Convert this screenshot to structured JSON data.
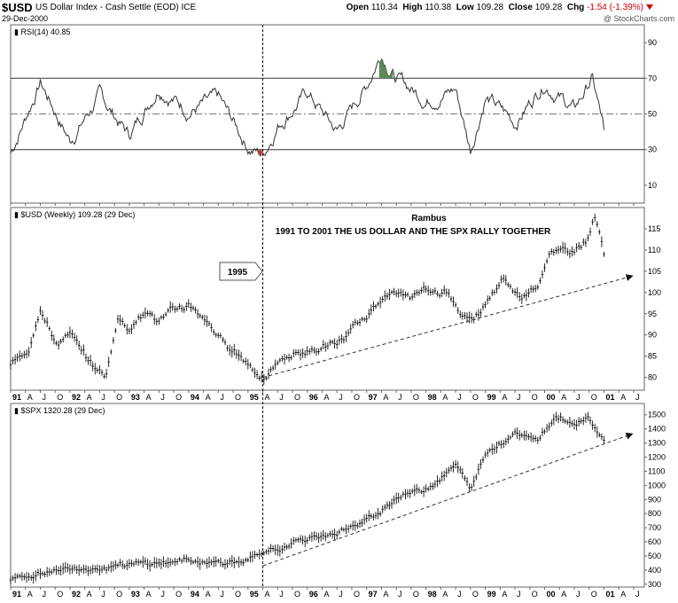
{
  "header": {
    "symbol": "$USD",
    "description": "US Dollar Index - Cash Settle (EOD)  ICE",
    "date": "29-Dec-2000",
    "open_label": "Open",
    "open": "110.34",
    "high_label": "High",
    "high": "110.38",
    "low_label": "Low",
    "low": "109.28",
    "close_label": "Close",
    "close": "109.28",
    "chg_label": "Chg",
    "chg": "-1.54 (-1.39%)",
    "brand": "@ StockCharts.com",
    "colors": {
      "negative": "#cc0000"
    }
  },
  "chart_data": [
    {
      "type": "line",
      "title": "RSI(14) 40.85",
      "yticks": [
        90,
        70,
        50,
        30,
        10
      ],
      "ylim": [
        0,
        100
      ],
      "reference_lines": [
        70,
        50,
        30
      ],
      "x": [
        1991.0,
        1991.5,
        1992.0,
        1992.5,
        1993.0,
        1993.5,
        1994.0,
        1994.5,
        1995.0,
        1995.25,
        1995.5,
        1996.0,
        1996.5,
        1997.0,
        1997.25,
        1997.5,
        1998.0,
        1998.5,
        1998.75,
        1999.0,
        1999.5,
        2000.0,
        2000.5,
        2000.8,
        2001.0
      ],
      "values": [
        28,
        68,
        35,
        60,
        38,
        66,
        52,
        58,
        32,
        27,
        44,
        62,
        40,
        66,
        85,
        70,
        58,
        64,
        30,
        60,
        45,
        68,
        52,
        70,
        41
      ],
      "overbought_fill": {
        "from": 1997.2,
        "to": 1997.45,
        "color": "#5a8a5a"
      },
      "oversold_mark_color": "#cc3333"
    },
    {
      "type": "line",
      "title": "$USD (Weekly) 109.28 (29 Dec)",
      "annotation_title": "Rambus",
      "annotation": "1991 TO 2001 THE US DOLLAR AND THE SPX RALLY TOGETHER",
      "callout": "1995",
      "yticks": [
        115,
        110,
        105,
        100,
        95,
        90,
        85,
        80
      ],
      "ylim": [
        77,
        120
      ],
      "x": [
        1991.0,
        1991.3,
        1991.5,
        1991.75,
        1992.0,
        1992.3,
        1992.6,
        1992.8,
        1993.0,
        1993.3,
        1993.5,
        1993.75,
        1994.0,
        1994.3,
        1994.6,
        1994.9,
        1995.1,
        1995.3,
        1995.5,
        1995.8,
        1996.0,
        1996.5,
        1997.0,
        1997.3,
        1997.6,
        1998.0,
        1998.4,
        1998.6,
        1998.8,
        1999.0,
        1999.3,
        1999.6,
        1999.9,
        2000.1,
        2000.4,
        2000.7,
        2000.85,
        2001.0
      ],
      "values": [
        83,
        87,
        97,
        88,
        90,
        84,
        80,
        94,
        92,
        96,
        93,
        96,
        97,
        93,
        88,
        85,
        82,
        80,
        83,
        86,
        86,
        88,
        94,
        100,
        99,
        100,
        100,
        95,
        93,
        97,
        103,
        99,
        103,
        109,
        110,
        112,
        118,
        109
      ],
      "trendline": {
        "x": [
          1995.25,
          2001.5
        ],
        "y": [
          80,
          103.5
        ]
      }
    },
    {
      "type": "line",
      "title": "$SPX 1320.28 (29 Dec)",
      "yticks": [
        1500,
        1400,
        1300,
        1200,
        1100,
        1000,
        900,
        800,
        700,
        600,
        500,
        400,
        300
      ],
      "ylim": [
        280,
        1580
      ],
      "x": [
        1991.0,
        1991.5,
        1992.0,
        1992.5,
        1993.0,
        1993.5,
        1994.0,
        1994.5,
        1995.0,
        1995.5,
        1996.0,
        1996.5,
        1997.0,
        1997.5,
        1998.0,
        1998.5,
        1998.75,
        1999.0,
        1999.5,
        1999.9,
        2000.2,
        2000.5,
        2000.75,
        2001.0
      ],
      "values": [
        330,
        380,
        415,
        420,
        435,
        450,
        470,
        455,
        465,
        550,
        620,
        670,
        740,
        920,
        980,
        1150,
        960,
        1230,
        1380,
        1330,
        1500,
        1440,
        1470,
        1320
      ],
      "trendline": {
        "x": [
          1995.25,
          2001.5
        ],
        "y": [
          430,
          1350
        ]
      }
    }
  ],
  "time_axis": {
    "labels": [
      "91",
      "A",
      "J",
      "O",
      "92",
      "A",
      "J",
      "O",
      "93",
      "A",
      "J",
      "O",
      "94",
      "A",
      "J",
      "O",
      "95",
      "A",
      "J",
      "O",
      "96",
      "A",
      "J",
      "O",
      "97",
      "A",
      "J",
      "O",
      "98",
      "A",
      "J",
      "O",
      "99",
      "A",
      "J",
      "O",
      "00",
      "A",
      "J",
      "O",
      "01",
      "A",
      "J"
    ],
    "start": 1991.0,
    "step": 0.25,
    "vertical_marker": 1995.25
  }
}
